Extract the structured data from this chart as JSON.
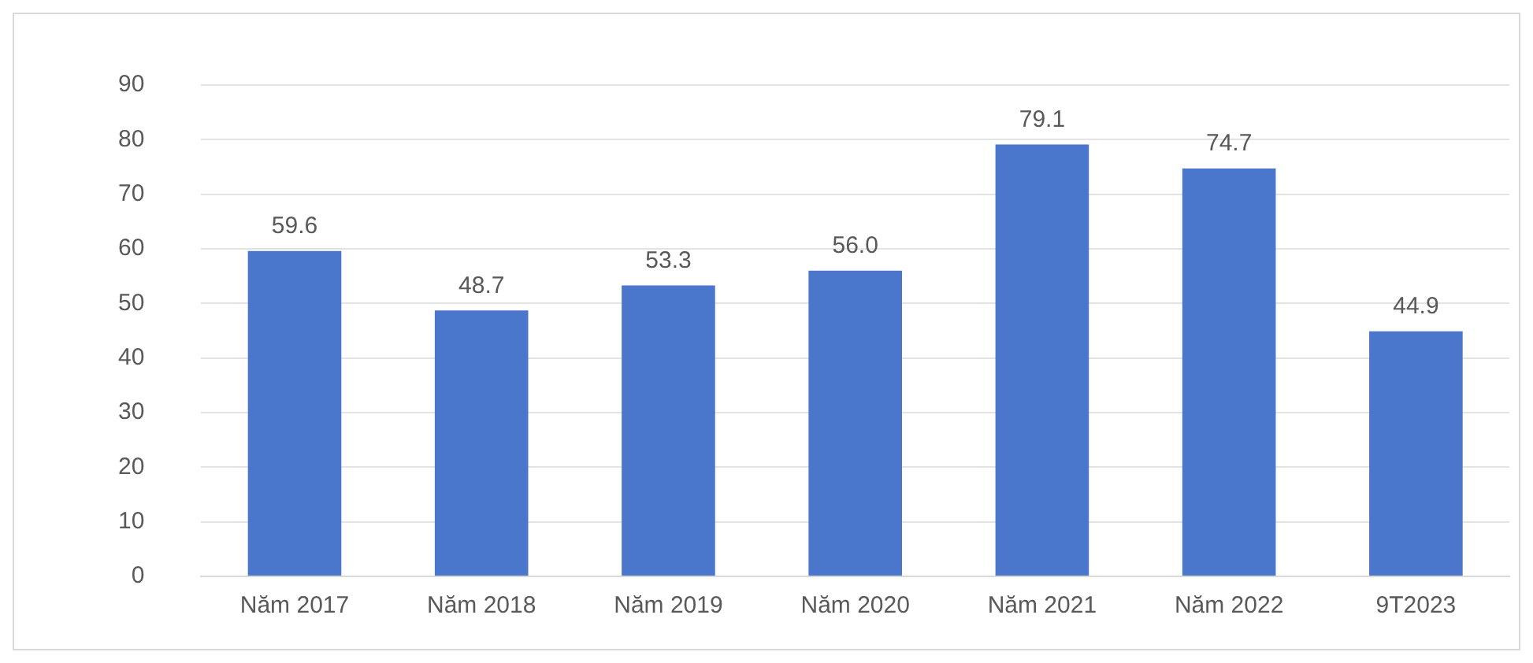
{
  "chart_data": {
    "type": "bar",
    "categories": [
      "Năm 2017",
      "Năm 2018",
      "Năm 2019",
      "Năm 2020",
      "Năm 2021",
      "Năm 2022",
      "9T2023"
    ],
    "values": [
      59.6,
      48.7,
      53.3,
      56.0,
      79.1,
      74.7,
      44.9
    ],
    "value_labels": [
      "59.6",
      "48.7",
      "53.3",
      "56.0",
      "79.1",
      "74.7",
      "44.9"
    ],
    "color": "#4a77cc",
    "ylim": [
      0,
      90
    ],
    "yticks": [
      0,
      10,
      20,
      30,
      40,
      50,
      60,
      70,
      80,
      90
    ],
    "grid": "y",
    "legend": false
  }
}
